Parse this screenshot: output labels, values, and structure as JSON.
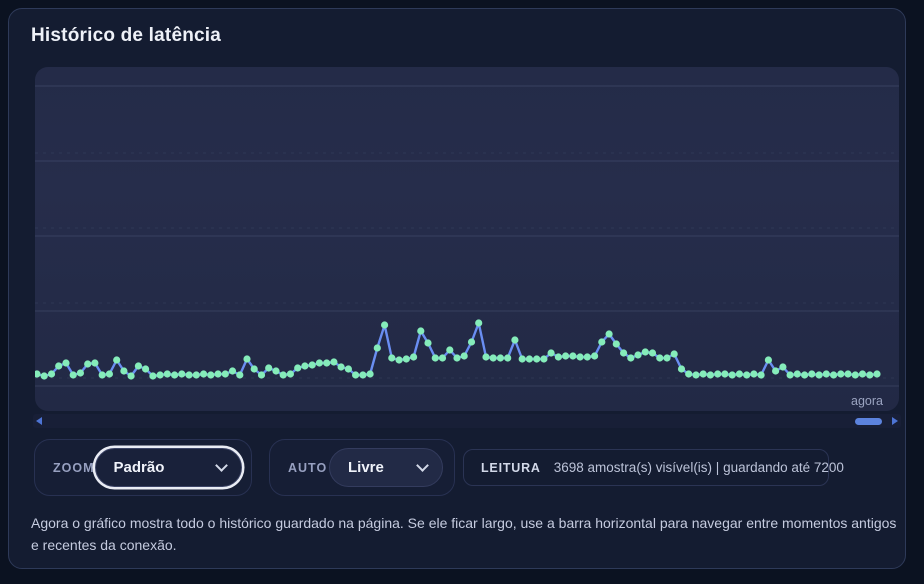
{
  "card": {
    "title": "Histórico de latência"
  },
  "chart": {
    "now_label": "agora",
    "colors": {
      "line": "#6a8ef2",
      "dot": "#85ecba"
    }
  },
  "chart_data": {
    "type": "line",
    "title": "Histórico de latência",
    "xlabel": "",
    "ylabel": "",
    "x_end_label": "agora",
    "unit": "ms",
    "y_axis_labels_visible": false,
    "ylim": [
      0,
      160
    ],
    "legend": "none",
    "grid": "horizontal",
    "values": [
      24,
      20,
      24,
      40,
      46,
      22,
      26,
      44,
      46,
      22,
      24,
      52,
      30,
      20,
      40,
      34,
      20,
      22,
      24,
      22,
      24,
      22,
      22,
      24,
      22,
      24,
      24,
      30,
      22,
      54,
      34,
      22,
      36,
      30,
      22,
      24,
      36,
      40,
      42,
      46,
      46,
      48,
      38,
      34,
      22,
      22,
      24,
      76,
      122,
      56,
      52,
      54,
      58,
      110,
      86,
      56,
      56,
      72,
      56,
      60,
      88,
      126,
      58,
      56,
      56,
      56,
      92,
      54,
      54,
      54,
      54,
      66,
      58,
      60,
      60,
      58,
      58,
      60,
      88,
      104,
      84,
      66,
      56,
      62,
      68,
      66,
      56,
      56,
      64,
      34,
      24,
      22,
      24,
      22,
      24,
      24,
      22,
      24,
      22,
      24,
      22,
      52,
      30,
      38,
      22,
      24,
      22,
      24,
      22,
      24,
      22,
      24,
      24,
      22,
      24,
      22,
      24
    ]
  },
  "scrollbar": {
    "left_icon": "triangle-left",
    "right_icon": "triangle-right",
    "thumb_color": "#5c83de"
  },
  "controls": {
    "zoom": {
      "label": "ZOOM",
      "value": "Padrão",
      "icon": "chevron-down",
      "focused": true
    },
    "auto": {
      "label": "AUTO",
      "value": "Livre",
      "icon": "chevron-down"
    },
    "leitura": {
      "label": "LEITURA",
      "value": "3698 amostra(s) visível(is) | guardando até 7200"
    }
  },
  "footer": {
    "text": "Agora o gráfico mostra todo o histórico guardado na página. Se ele ficar largo, use a barra horizontal para navegar entre momentos antigos e recentes da conexão."
  }
}
